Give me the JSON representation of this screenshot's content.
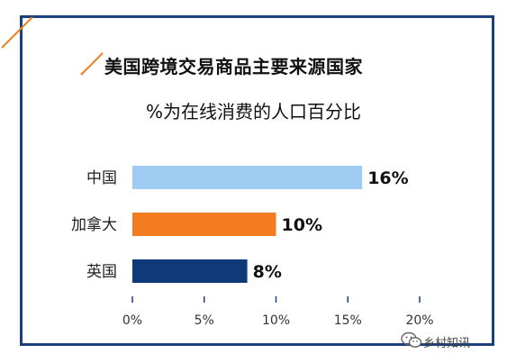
{
  "title": "美国跨境交易商品主要来源国家",
  "subtitle": "%为在线消费的人口百分比",
  "watermark": "乡村知讯",
  "colors": {
    "frame": "#1d3f7c",
    "accent": "#f07d1f"
  },
  "chart_data": {
    "type": "bar",
    "orientation": "horizontal",
    "categories": [
      "中国",
      "加拿大",
      "英国"
    ],
    "values": [
      16,
      10,
      8
    ],
    "value_labels": [
      "16%",
      "10%",
      "8%"
    ],
    "bar_colors": [
      "#9ecbf2",
      "#f47c20",
      "#0f3a7a"
    ],
    "xlim": [
      0,
      20
    ],
    "x_ticks": [
      "0%",
      "5%",
      "10%",
      "15%",
      "20%"
    ],
    "grid": false
  }
}
